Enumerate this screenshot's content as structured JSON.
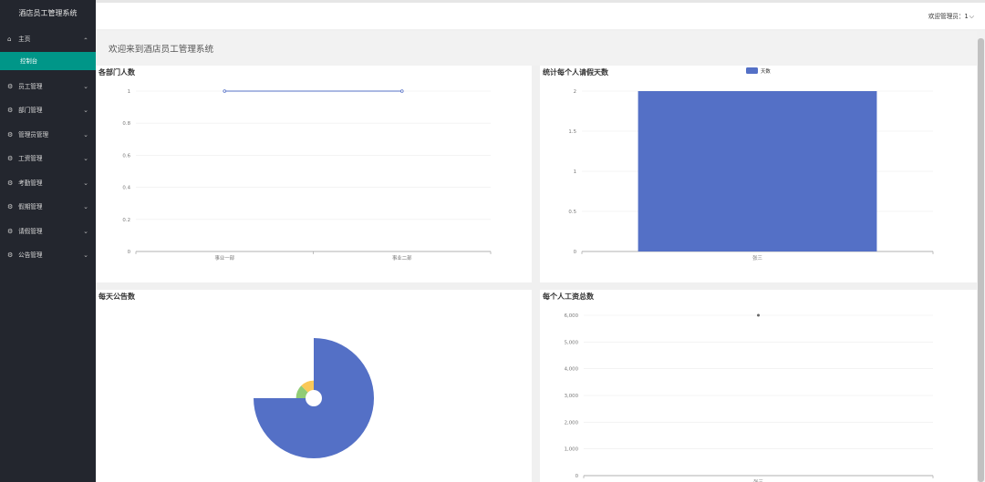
{
  "app": {
    "title": "酒店员工管理系统"
  },
  "sidebar": {
    "items": [
      {
        "label": "主页",
        "icon": "home-icon",
        "open": true,
        "children": [
          {
            "label": "控制台"
          }
        ]
      },
      {
        "label": "员工管理",
        "icon": "gear-icon"
      },
      {
        "label": "部门管理",
        "icon": "gear-icon"
      },
      {
        "label": "管理员管理",
        "icon": "gear-icon"
      },
      {
        "label": "工资管理",
        "icon": "gear-icon"
      },
      {
        "label": "考勤管理",
        "icon": "gear-icon"
      },
      {
        "label": "假期管理",
        "icon": "gear-icon"
      },
      {
        "label": "请假管理",
        "icon": "gear-icon"
      },
      {
        "label": "公告管理",
        "icon": "gear-icon"
      }
    ]
  },
  "header": {
    "user_label": "欢迎管理员：1"
  },
  "welcome": {
    "text": "欢迎来到酒店员工管理系统"
  },
  "colors": {
    "sidebar_bg": "#23262e",
    "accent": "#009688",
    "series_blue": "#5470c6",
    "series_green": "#91cc75",
    "series_yellow": "#fac858"
  },
  "chart_data": [
    {
      "type": "line",
      "title": "各部门人数",
      "categories": [
        "事业一部",
        "事业二部"
      ],
      "series": [
        {
          "values": [
            1,
            1
          ]
        }
      ],
      "ylim": [
        0,
        1
      ],
      "yticks": [
        "0",
        "0.2",
        "0.4",
        "0.6",
        "0.8",
        "1"
      ],
      "grid": true
    },
    {
      "type": "bar",
      "title": "统计每个人请假天数",
      "categories": [
        "张三"
      ],
      "series": [
        {
          "name": "天数",
          "values": [
            2
          ]
        }
      ],
      "ylim": [
        0,
        2
      ],
      "yticks": [
        "0",
        "0.5",
        "1",
        "1.5",
        "2"
      ],
      "legend": "top-center",
      "grid": true
    },
    {
      "type": "pie",
      "title": "每天公告数",
      "slices": [
        {
          "value": 75,
          "color": "#5470c6"
        },
        {
          "value": 2.5,
          "color": "#91cc75"
        },
        {
          "value": 2.5,
          "color": "#fac858"
        }
      ],
      "rose": true
    },
    {
      "type": "scatter",
      "title": "每个人工资总数",
      "categories": [
        "张三"
      ],
      "series": [
        {
          "values": [
            6000
          ]
        }
      ],
      "ylim": [
        0,
        6000
      ],
      "yticks": [
        "0",
        "1,000",
        "2,000",
        "3,000",
        "4,000",
        "5,000",
        "6,000"
      ],
      "grid": true
    }
  ]
}
